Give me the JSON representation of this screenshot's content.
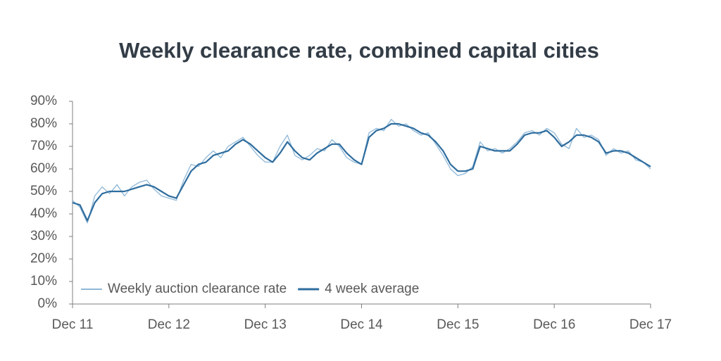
{
  "chart_data": {
    "type": "line",
    "title": "Weekly clearance rate, combined capital cities",
    "categories": [
      "Dec 11",
      null,
      null,
      null,
      null,
      null,
      null,
      null,
      null,
      null,
      null,
      null,
      null,
      "Dec 12",
      null,
      null,
      null,
      null,
      null,
      null,
      null,
      null,
      null,
      null,
      null,
      null,
      "Dec 13",
      null,
      null,
      null,
      null,
      null,
      null,
      null,
      null,
      null,
      null,
      null,
      null,
      "Dec 14",
      null,
      null,
      null,
      null,
      null,
      null,
      null,
      null,
      null,
      null,
      null,
      null,
      "Dec 15",
      null,
      null,
      null,
      null,
      null,
      null,
      null,
      null,
      null,
      null,
      null,
      null,
      "Dec 16",
      null,
      null,
      null,
      null,
      null,
      null,
      null,
      null,
      null,
      null,
      null,
      null,
      "Dec 17"
    ],
    "series": [
      {
        "name": "Weekly auction clearance rate",
        "color": "#8fb8d8",
        "width": 1.3,
        "values": [
          46,
          43,
          36,
          48,
          52,
          49,
          53,
          48,
          52,
          54,
          55,
          51,
          48,
          47,
          46,
          55,
          62,
          61,
          65,
          68,
          65,
          70,
          72,
          74,
          70,
          66,
          63,
          63,
          70,
          75,
          66,
          64,
          66,
          69,
          68,
          73,
          70,
          65,
          63,
          62,
          76,
          78,
          77,
          82,
          79,
          80,
          77,
          75,
          76,
          71,
          66,
          60,
          57,
          58,
          61,
          72,
          68,
          69,
          67,
          69,
          72,
          76,
          77,
          75,
          78,
          76,
          71,
          69,
          78,
          74,
          75,
          73,
          66,
          69,
          67,
          68,
          64,
          63,
          60
        ]
      },
      {
        "name": "4 week average",
        "color": "#2f6d9e",
        "width": 2.2,
        "values": [
          45,
          44,
          37,
          45,
          49,
          50,
          50,
          50,
          51,
          52,
          53,
          52,
          50,
          48,
          47,
          53,
          59,
          62,
          63,
          66,
          67,
          68,
          71,
          73,
          71,
          68,
          65,
          63,
          67,
          72,
          68,
          65,
          64,
          67,
          69,
          71,
          71,
          67,
          64,
          62,
          74,
          77,
          78,
          80,
          80,
          79,
          78,
          76,
          75,
          72,
          68,
          62,
          59,
          59,
          60,
          70,
          69,
          68,
          68,
          68,
          71,
          75,
          76,
          76,
          77,
          74,
          70,
          72,
          75,
          75,
          74,
          72,
          67,
          68,
          68,
          67,
          65,
          63,
          61
        ]
      }
    ],
    "ylim": [
      0,
      90
    ],
    "yticks": [
      {
        "value": 0,
        "label": "0%"
      },
      {
        "value": 10,
        "label": "10%"
      },
      {
        "value": 20,
        "label": "20%"
      },
      {
        "value": 30,
        "label": "30%"
      },
      {
        "value": 40,
        "label": "40%"
      },
      {
        "value": 50,
        "label": "50%"
      },
      {
        "value": 60,
        "label": "60%"
      },
      {
        "value": 70,
        "label": "70%"
      },
      {
        "value": 80,
        "label": "80%"
      },
      {
        "value": 90,
        "label": "90%"
      }
    ],
    "legend": "lower-left"
  }
}
